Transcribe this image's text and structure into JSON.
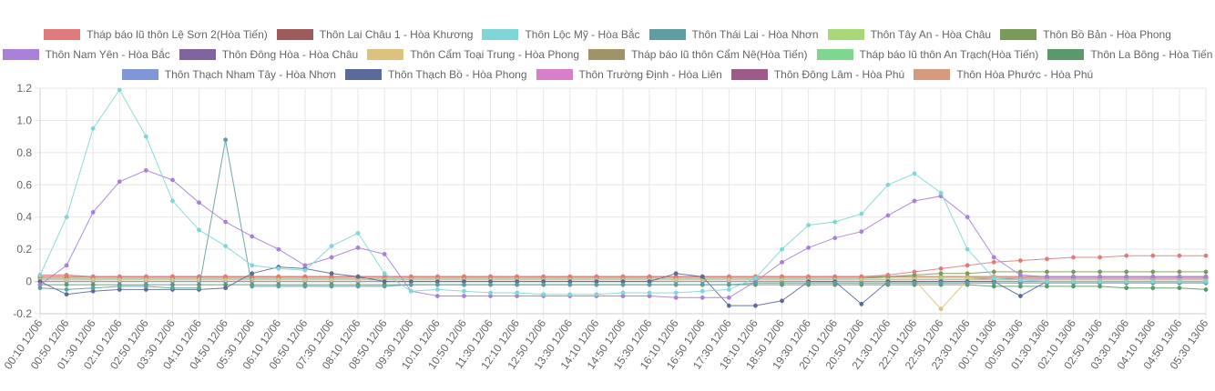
{
  "chart_data": {
    "type": "line",
    "title": "",
    "xlabel": "",
    "ylabel": "",
    "ylim": [
      -0.2,
      1.2
    ],
    "y_ticks": [
      "-0.2",
      "0",
      "0.2",
      "0.4",
      "0.6",
      "0.8",
      "1.0",
      "1.2"
    ],
    "grid": true,
    "legend_position": "top",
    "x_labels": [
      "00:10 12/06",
      "00:50 12/06",
      "01:30 12/06",
      "02:10 12/06",
      "02:50 12/06",
      "03:30 12/06",
      "04:10 12/06",
      "04:50 12/06",
      "05:30 12/06",
      "06:10 12/06",
      "06:50 12/06",
      "07:30 12/06",
      "08:10 12/06",
      "08:50 12/06",
      "09:30 12/06",
      "10:10 12/06",
      "10:50 12/06",
      "11:30 12/06",
      "12:10 12/06",
      "12:50 12/06",
      "13:30 12/06",
      "14:10 12/06",
      "14:50 12/06",
      "15:30 12/06",
      "16:10 12/06",
      "16:50 12/06",
      "17:30 12/06",
      "18:10 12/06",
      "18:50 12/06",
      "19:30 12/06",
      "20:10 12/06",
      "20:50 12/06",
      "21:30 12/06",
      "22:10 12/06",
      "22:50 12/06",
      "23:30 12/06",
      "00:10 13/06",
      "00:50 13/06",
      "01:30 13/06",
      "02:10 13/06",
      "02:50 13/06",
      "03:30 13/06",
      "04:10 13/06",
      "04:50 13/06",
      "05:30 13/06"
    ],
    "series": [
      {
        "name": "Tháp báo lũ thôn Lệ Sơn 2(Hòa Tiến)",
        "color": "#e07b7b",
        "values": [
          0.04,
          0.04,
          0.03,
          0.03,
          0.03,
          0.03,
          0.03,
          0.03,
          0.03,
          0.03,
          0.03,
          0.03,
          0.03,
          0.03,
          0.03,
          0.03,
          0.03,
          0.03,
          0.03,
          0.03,
          0.03,
          0.03,
          0.03,
          0.03,
          0.03,
          0.03,
          0.03,
          0.03,
          0.03,
          0.03,
          0.03,
          0.03,
          0.04,
          0.06,
          0.08,
          0.1,
          0.12,
          0.13,
          0.14,
          0.15,
          0.15,
          0.16,
          0.16,
          0.16,
          0.16
        ]
      },
      {
        "name": "Thôn Lai Châu 1 - Hòa Khương",
        "color": "#9e5b5b",
        "values": [
          0.03,
          0.03,
          0.03,
          0.03,
          0.03,
          0.03,
          0.03,
          0.03,
          0.03,
          0.03,
          0.03,
          0.03,
          0.03,
          0.03,
          0.03,
          0.03,
          0.03,
          0.03,
          0.03,
          0.03,
          0.03,
          0.03,
          0.03,
          0.03,
          0.03,
          0.03,
          0.03,
          0.03,
          0.03,
          0.03,
          0.03,
          0.03,
          0.03,
          0.03,
          0.03,
          0.03,
          0.03,
          0.03,
          0.03,
          0.03,
          0.03,
          0.03,
          0.03,
          0.03,
          0.03
        ]
      },
      {
        "name": "Thôn Lộc Mỹ - Hòa Bắc",
        "color": "#7fd6d6",
        "values": [
          0.04,
          0.4,
          0.95,
          1.19,
          0.9,
          0.5,
          0.32,
          0.22,
          0.1,
          0.08,
          0.07,
          0.22,
          0.3,
          0.05,
          -0.06,
          -0.05,
          -0.06,
          -0.07,
          -0.07,
          -0.08,
          -0.08,
          -0.08,
          -0.07,
          -0.07,
          -0.07,
          -0.06,
          -0.05,
          0.02,
          0.2,
          0.35,
          0.37,
          0.42,
          0.6,
          0.67,
          0.55,
          0.2,
          0.02,
          0.01,
          0.0,
          0.0,
          0.0,
          0.0,
          0.0,
          0.0,
          0.0
        ]
      },
      {
        "name": "Thôn Thái Lai - Hòa Nhơn",
        "color": "#5f9ea0",
        "values": [
          -0.04,
          -0.05,
          -0.04,
          -0.03,
          -0.03,
          -0.04,
          -0.04,
          0.88,
          -0.03,
          -0.03,
          -0.03,
          -0.03,
          -0.03,
          -0.03,
          -0.02,
          -0.02,
          -0.02,
          -0.02,
          -0.02,
          -0.02,
          -0.02,
          -0.02,
          -0.02,
          -0.02,
          -0.02,
          -0.02,
          -0.02,
          -0.01,
          -0.01,
          -0.01,
          -0.01,
          -0.01,
          -0.01,
          -0.01,
          -0.01,
          -0.01,
          -0.01,
          -0.01,
          -0.01,
          -0.01,
          -0.01,
          -0.01,
          -0.01,
          -0.01,
          -0.01
        ]
      },
      {
        "name": "Thôn Tây An - Hòa Châu",
        "color": "#a8d878",
        "values": [
          0.02,
          0.02,
          0.02,
          0.02,
          0.02,
          0.02,
          0.02,
          0.02,
          0.02,
          0.02,
          0.02,
          0.02,
          0.02,
          0.02,
          0.02,
          0.02,
          0.02,
          0.02,
          0.02,
          0.02,
          0.02,
          0.02,
          0.02,
          0.02,
          0.02,
          0.02,
          0.02,
          0.02,
          0.02,
          0.02,
          0.02,
          0.02,
          0.02,
          0.02,
          0.02,
          0.02,
          0.01,
          0.01,
          0.01,
          0.01,
          0.01,
          0.01,
          0.01,
          0.01,
          0.01
        ]
      },
      {
        "name": "Thôn Bồ Bản - Hòa Phong",
        "color": "#7a9a5a",
        "values": [
          0.02,
          0.02,
          0.02,
          0.02,
          0.02,
          0.02,
          0.02,
          0.02,
          0.02,
          0.02,
          0.02,
          0.02,
          0.02,
          0.02,
          0.02,
          0.02,
          0.02,
          0.02,
          0.02,
          0.02,
          0.02,
          0.02,
          0.02,
          0.02,
          0.02,
          0.02,
          0.02,
          0.02,
          0.02,
          0.02,
          0.02,
          0.02,
          0.03,
          0.04,
          0.05,
          0.05,
          0.06,
          0.06,
          0.06,
          0.06,
          0.06,
          0.06,
          0.06,
          0.06,
          0.06
        ]
      },
      {
        "name": "Thôn Nam Yên - Hòa Bắc",
        "color": "#a97fd8",
        "values": [
          -0.02,
          0.1,
          0.43,
          0.62,
          0.69,
          0.63,
          0.49,
          0.37,
          0.28,
          0.2,
          0.1,
          0.15,
          0.21,
          0.17,
          -0.06,
          -0.09,
          -0.09,
          -0.09,
          -0.09,
          -0.09,
          -0.09,
          -0.09,
          -0.09,
          -0.09,
          -0.1,
          -0.1,
          -0.1,
          0.0,
          0.12,
          0.21,
          0.27,
          0.31,
          0.41,
          0.5,
          0.53,
          0.4,
          0.15,
          0.04,
          0.03,
          0.03,
          0.03,
          0.03,
          0.03,
          0.03,
          0.03
        ]
      },
      {
        "name": "Thôn Đông Hòa - Hòa Châu",
        "color": "#8064a2",
        "values": [
          0.02,
          0.02,
          0.02,
          0.02,
          0.02,
          0.02,
          0.02,
          0.02,
          0.02,
          0.02,
          0.02,
          0.02,
          0.02,
          0.02,
          0.02,
          0.02,
          0.02,
          0.02,
          0.02,
          0.02,
          0.02,
          0.02,
          0.02,
          0.02,
          0.02,
          0.02,
          0.02,
          0.02,
          0.02,
          0.02,
          0.02,
          0.02,
          0.02,
          0.02,
          0.02,
          0.02,
          0.02,
          0.02,
          0.02,
          0.02,
          0.02,
          0.02,
          0.02,
          0.02,
          0.02
        ]
      },
      {
        "name": "Thôn Cẩm Toại Trung - Hòa Phong",
        "color": "#dcc27f",
        "values": [
          0.01,
          0.01,
          0.01,
          0.01,
          0.01,
          0.01,
          0.01,
          0.01,
          0.01,
          0.01,
          0.01,
          0.01,
          0.01,
          0.01,
          0.01,
          0.01,
          0.01,
          0.01,
          0.01,
          0.01,
          0.01,
          0.01,
          0.01,
          0.01,
          0.01,
          0.01,
          0.01,
          0.01,
          0.01,
          0.01,
          0.01,
          0.01,
          0.01,
          0.01,
          -0.17,
          0.01,
          0.01,
          0.01,
          0.01,
          0.01,
          0.01,
          0.01,
          0.01,
          0.01,
          0.01
        ]
      },
      {
        "name": "Tháp báo lũ thôn Cẩm Nê(Hòa Tiến)",
        "color": "#9e9466",
        "values": [
          0.03,
          0.03,
          0.03,
          0.03,
          0.03,
          0.03,
          0.03,
          0.03,
          0.03,
          0.03,
          0.03,
          0.03,
          0.03,
          0.03,
          0.03,
          0.03,
          0.03,
          0.03,
          0.03,
          0.03,
          0.03,
          0.03,
          0.03,
          0.03,
          0.03,
          0.03,
          0.03,
          0.03,
          0.03,
          0.03,
          0.03,
          0.03,
          0.03,
          0.03,
          0.03,
          0.03,
          0.03,
          0.03,
          0.03,
          0.03,
          0.03,
          0.03,
          0.03,
          0.03,
          0.03
        ]
      },
      {
        "name": "Tháp báo lũ thôn An Trạch(Hòa Tiến)",
        "color": "#7fd68f",
        "values": [
          0.0,
          0.0,
          0.0,
          0.0,
          0.0,
          0.0,
          0.0,
          0.0,
          0.0,
          0.0,
          0.0,
          0.0,
          0.0,
          0.0,
          0.0,
          0.0,
          0.0,
          0.0,
          0.0,
          0.0,
          0.0,
          0.0,
          0.0,
          0.0,
          0.0,
          0.0,
          0.0,
          0.0,
          0.0,
          0.0,
          0.0,
          0.0,
          0.0,
          0.0,
          0.0,
          0.0,
          0.0,
          0.0,
          0.0,
          0.0,
          0.0,
          0.0,
          0.0,
          0.0,
          0.0
        ]
      },
      {
        "name": "Thôn La Bông - Hòa Tiến",
        "color": "#5a9a6a",
        "values": [
          -0.02,
          -0.02,
          -0.02,
          -0.02,
          -0.02,
          -0.02,
          -0.02,
          -0.02,
          -0.02,
          -0.02,
          -0.02,
          -0.02,
          -0.02,
          -0.02,
          -0.02,
          -0.02,
          -0.02,
          -0.02,
          -0.02,
          -0.02,
          -0.02,
          -0.02,
          -0.02,
          -0.02,
          -0.02,
          -0.02,
          -0.02,
          -0.02,
          -0.02,
          -0.02,
          -0.02,
          -0.02,
          -0.02,
          -0.02,
          -0.02,
          -0.02,
          -0.03,
          -0.03,
          -0.03,
          -0.03,
          -0.03,
          -0.04,
          -0.04,
          -0.04,
          -0.05
        ]
      },
      {
        "name": "Thôn Thạch Nham Tây - Hòa Nhơn",
        "color": "#7f96d8",
        "values": [
          0.0,
          0.0,
          0.0,
          0.0,
          0.0,
          0.0,
          0.0,
          0.0,
          0.0,
          0.0,
          0.0,
          0.0,
          0.0,
          0.0,
          0.0,
          0.0,
          0.0,
          0.0,
          0.0,
          0.0,
          0.0,
          0.0,
          0.0,
          0.0,
          0.0,
          0.0,
          0.0,
          0.0,
          0.0,
          0.0,
          0.0,
          0.0,
          0.0,
          0.0,
          0.0,
          0.0,
          0.0,
          0.0,
          0.0,
          0.0,
          0.0,
          0.0,
          0.0,
          0.0,
          0.0
        ]
      },
      {
        "name": "Thôn Thạch Bồ - Hòa Phong",
        "color": "#5a6a9a",
        "values": [
          0.0,
          -0.08,
          -0.06,
          -0.05,
          -0.05,
          -0.05,
          -0.05,
          -0.04,
          0.05,
          0.09,
          0.08,
          0.05,
          0.03,
          0.0,
          0.0,
          0.0,
          0.0,
          0.0,
          0.0,
          0.0,
          0.0,
          0.0,
          0.0,
          0.0,
          0.05,
          0.03,
          -0.15,
          -0.15,
          -0.12,
          0.0,
          0.0,
          -0.14,
          0.0,
          0.0,
          0.0,
          0.0,
          0.0,
          -0.09,
          0.0,
          0.0,
          0.0,
          0.0,
          0.0,
          0.0,
          0.0
        ]
      },
      {
        "name": "Thôn Trường Định - Hòa Liên",
        "color": "#d87fc9",
        "values": [
          0.01,
          0.01,
          0.01,
          0.01,
          0.01,
          0.01,
          0.01,
          0.01,
          0.01,
          0.01,
          0.01,
          0.01,
          0.01,
          0.01,
          0.01,
          0.01,
          0.01,
          0.01,
          0.01,
          0.01,
          0.01,
          0.01,
          0.01,
          0.01,
          0.01,
          0.01,
          0.01,
          0.01,
          0.01,
          0.01,
          0.01,
          0.01,
          0.01,
          0.01,
          0.01,
          0.01,
          0.01,
          0.01,
          0.01,
          0.01,
          0.01,
          0.01,
          0.01,
          0.01,
          0.01
        ]
      },
      {
        "name": "Thôn Đông Lâm - Hòa Phú",
        "color": "#9e5b8a",
        "values": [
          0.02,
          0.02,
          0.02,
          0.02,
          0.02,
          0.02,
          0.02,
          0.02,
          0.02,
          0.02,
          0.02,
          0.02,
          0.02,
          0.02,
          0.02,
          0.02,
          0.02,
          0.02,
          0.02,
          0.02,
          0.02,
          0.02,
          0.02,
          0.02,
          0.02,
          0.02,
          0.02,
          0.02,
          0.02,
          0.02,
          0.02,
          0.02,
          0.02,
          0.02,
          0.02,
          0.02,
          0.02,
          0.02,
          0.02,
          0.02,
          0.02,
          0.02,
          0.02,
          0.02,
          0.02
        ]
      },
      {
        "name": "Thôn Hòa Phước - Hòa Phú",
        "color": "#d89a7f",
        "values": [
          0.03,
          0.03,
          0.03,
          0.03,
          0.03,
          0.03,
          0.03,
          0.03,
          0.03,
          0.03,
          0.03,
          0.03,
          0.03,
          0.03,
          0.03,
          0.03,
          0.03,
          0.03,
          0.03,
          0.03,
          0.03,
          0.03,
          0.03,
          0.03,
          0.03,
          0.03,
          0.03,
          0.03,
          0.03,
          0.03,
          0.03,
          0.03,
          0.03,
          0.03,
          0.03,
          0.03,
          0.03,
          0.03,
          0.03,
          0.03,
          0.03,
          0.03,
          0.03,
          0.03,
          0.03
        ]
      }
    ]
  }
}
